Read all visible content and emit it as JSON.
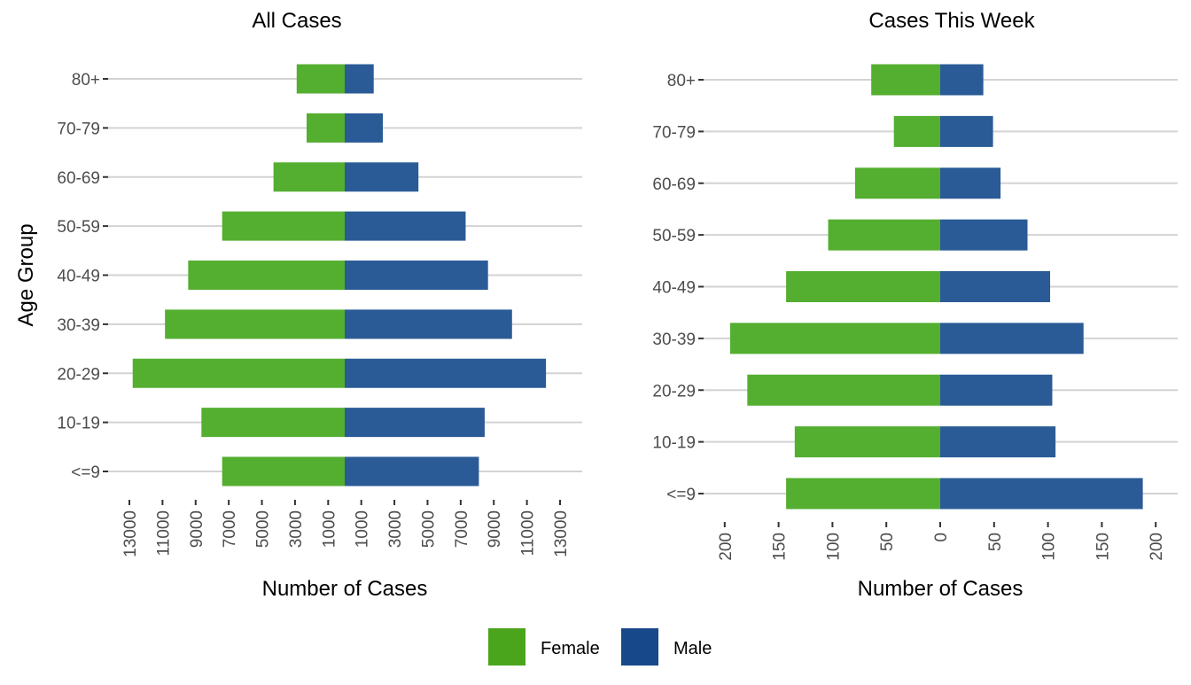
{
  "colors": {
    "female": "#54ae30",
    "male": "#2a5b96",
    "female_legend": "#4aa51c",
    "male_legend": "#17488a"
  },
  "legend": {
    "items": [
      {
        "label": "Female",
        "key": "female"
      },
      {
        "label": "Male",
        "key": "male"
      }
    ],
    "position": "bottom"
  },
  "chart_data": [
    {
      "type": "bar",
      "orientation": "horizontal",
      "stacking": "diverging",
      "title": "All Cases",
      "xlabel": "Number of Cases",
      "ylabel": "Age Group",
      "categories": [
        "<=9",
        "10-19",
        "20-29",
        "30-39",
        "40-49",
        "50-59",
        "60-69",
        "70-79",
        "80+"
      ],
      "series": [
        {
          "name": "Female",
          "values": [
            7400,
            8650,
            12800,
            10850,
            9450,
            7400,
            4300,
            2300,
            2900
          ]
        },
        {
          "name": "Male",
          "values": [
            8100,
            8450,
            12150,
            10100,
            8650,
            7300,
            4450,
            2300,
            1750
          ]
        }
      ],
      "xlim": [
        -13600,
        14000
      ],
      "xticks": [
        -13000,
        -11000,
        -9000,
        -7000,
        -5000,
        -3000,
        -1000,
        1000,
        3000,
        5000,
        7000,
        9000,
        11000,
        13000
      ],
      "xtick_labels": [
        "13000",
        "11000",
        "9000",
        "7000",
        "5000",
        "3000",
        "1000",
        "1000",
        "3000",
        "5000",
        "7000",
        "9000",
        "11000",
        "13000"
      ],
      "grid": "horizontal-major"
    },
    {
      "type": "bar",
      "orientation": "horizontal",
      "stacking": "diverging",
      "title": "Cases This Week",
      "xlabel": "Number of Cases",
      "ylabel": "",
      "categories": [
        "<=9",
        "10-19",
        "20-29",
        "30-39",
        "40-49",
        "50-59",
        "60-69",
        "70-79",
        "80+"
      ],
      "series": [
        {
          "name": "Female",
          "values": [
            143,
            135,
            179,
            195,
            143,
            104,
            79,
            43,
            64
          ]
        },
        {
          "name": "Male",
          "values": [
            188,
            107,
            104,
            133,
            102,
            81,
            56,
            49,
            40
          ]
        }
      ],
      "xlim": [
        -220,
        221
      ],
      "xticks": [
        -200,
        -150,
        -100,
        -50,
        0,
        50,
        100,
        150,
        200
      ],
      "xtick_labels": [
        "200",
        "150",
        "100",
        "50",
        "0",
        "50",
        "100",
        "150",
        "200"
      ],
      "grid": "horizontal-major"
    }
  ]
}
